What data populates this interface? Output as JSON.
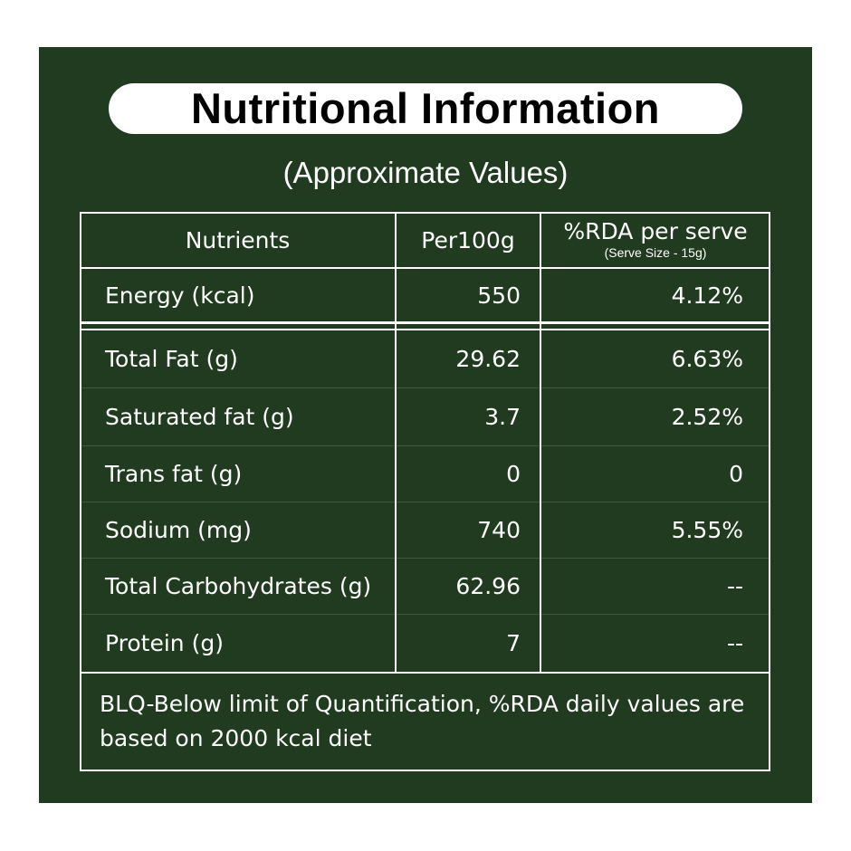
{
  "header": {
    "title": "Nutritional Information",
    "subtitle": "(Approximate Values)"
  },
  "table": {
    "columns": [
      "Nutrients",
      "Per100g",
      "%RDA per serve"
    ],
    "column_note": "(Serve Size - 15g)",
    "rows": [
      [
        "Energy (kcal)",
        "550",
        "4.12%"
      ],
      [
        "Total Fat (g)",
        "29.62",
        "6.63%"
      ],
      [
        "Saturated fat (g)",
        "3.7",
        "2.52%"
      ],
      [
        "Trans fat (g)",
        "0",
        "0"
      ],
      [
        "Sodium (mg)",
        "740",
        "5.55%"
      ],
      [
        "Total Carbohydrates (g)",
        "62.96",
        "--"
      ],
      [
        "Protein (g)",
        "7",
        "--"
      ]
    ]
  },
  "footnote": "BLQ-Below limit of Quantification, %RDA daily values are based on 2000 kcal diet"
}
